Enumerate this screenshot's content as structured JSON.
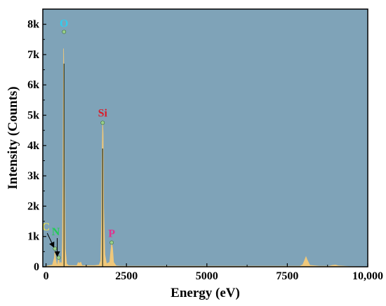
{
  "chart_data": {
    "type": "area",
    "title": "",
    "xlabel": "Energy (eV)",
    "ylabel": "Intensity (Counts)",
    "xlim": [
      -100,
      10000
    ],
    "ylim": [
      0,
      8500
    ],
    "x_ticks": [
      0,
      2500,
      5000,
      7500,
      10000
    ],
    "x_tick_labels": [
      "0",
      "2500",
      "5000",
      "7500",
      "10,000"
    ],
    "y_ticks": [
      0,
      1000,
      2000,
      3000,
      4000,
      5000,
      6000,
      7000,
      8000
    ],
    "y_tick_labels": [
      "0",
      "1k",
      "2k",
      "3k",
      "4k",
      "5k",
      "6k",
      "7k",
      "8k"
    ],
    "grid": false,
    "legend": "none",
    "colors": {
      "plot_background": "#7fa3b8",
      "spectrum_fill": "#f0c87a",
      "spectrum_core": "#2a3320",
      "marker": "#9ad08a"
    },
    "spectrum": {
      "x": [
        -100,
        200,
        260,
        277,
        300,
        340,
        360,
        392,
        420,
        450,
        490,
        510,
        525,
        545,
        560,
        575,
        600,
        640,
        700,
        800,
        960,
        1000,
        1040,
        1080,
        1120,
        1500,
        1650,
        1700,
        1725,
        1740,
        1760,
        1775,
        1790,
        1830,
        1880,
        1980,
        2010,
        2040,
        2070,
        2100,
        2180,
        2300,
        3500,
        5000,
        7000,
        7900,
        7980,
        8040,
        8080,
        8120,
        8200,
        8500,
        8800,
        8900,
        9000,
        9100,
        9400,
        10000
      ],
      "y": [
        0,
        60,
        300,
        520,
        250,
        30,
        120,
        300,
        60,
        150,
        100,
        900,
        3000,
        7200,
        6000,
        3000,
        600,
        100,
        40,
        40,
        40,
        140,
        120,
        150,
        40,
        40,
        60,
        200,
        1500,
        3500,
        4750,
        4400,
        2000,
        400,
        100,
        150,
        500,
        800,
        600,
        150,
        30,
        20,
        20,
        20,
        20,
        20,
        70,
        220,
        330,
        220,
        50,
        20,
        20,
        50,
        60,
        30,
        10,
        0
      ]
    },
    "peaks": [
      {
        "label": "O",
        "x": 560,
        "y": 7750,
        "color": "#33ccee"
      },
      {
        "label": "Si",
        "x": 1760,
        "y": 4750,
        "color": "#d91c2b"
      },
      {
        "label": "P",
        "x": 2040,
        "y": 800,
        "color": "#e0338f"
      },
      {
        "label": "C",
        "x": 277,
        "y": 600,
        "color": "#e8e05a"
      },
      {
        "label": "N",
        "x": 392,
        "y": 300,
        "color": "#22cc55"
      }
    ]
  }
}
